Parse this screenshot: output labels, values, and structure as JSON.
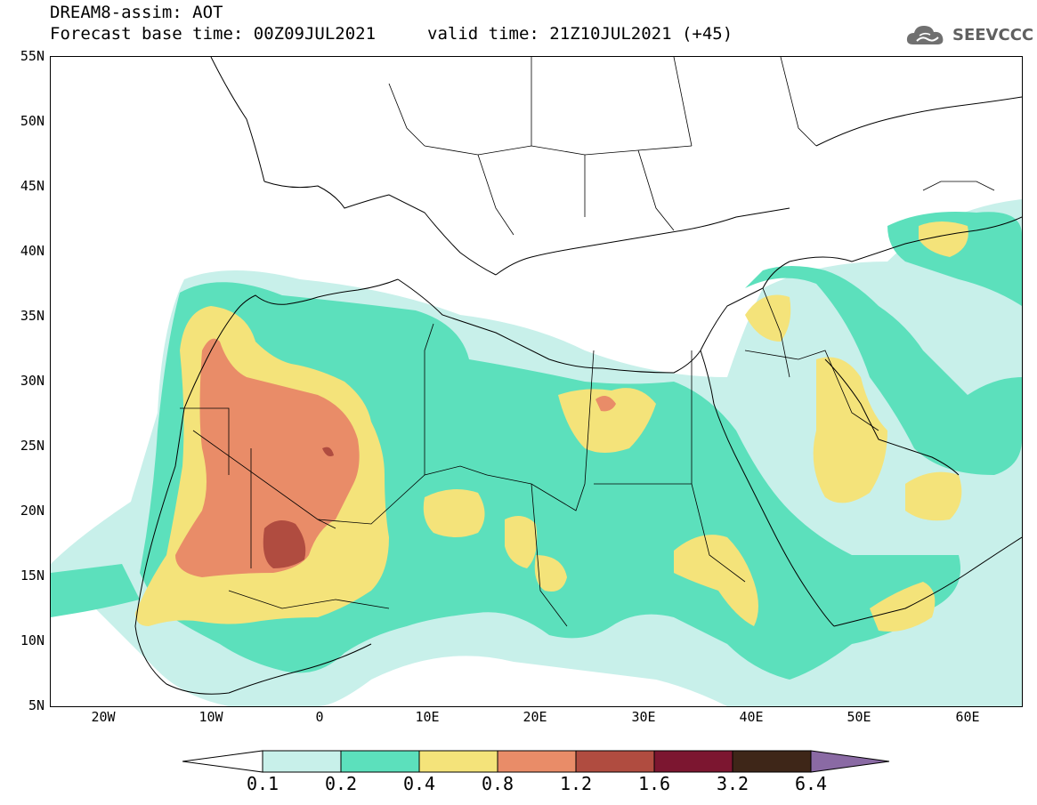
{
  "header": {
    "title": "DREAM8-assim: AOT",
    "base_time": "Forecast base time: 00Z09JUL2021",
    "valid_time": "valid time: 21Z10JUL2021 (+45)",
    "logo_text": "SEEVCCC"
  },
  "map": {
    "region": "North Africa, Middle East and Europe",
    "lat_labels": [
      "55N",
      "50N",
      "45N",
      "40N",
      "35N",
      "30N",
      "25N",
      "20N",
      "15N",
      "10N",
      "5N"
    ],
    "lon_labels": [
      "20W",
      "10W",
      "0",
      "10E",
      "20E",
      "30E",
      "40E",
      "50E",
      "60E"
    ],
    "lat_range": [
      5,
      55
    ],
    "lon_range": [
      -25,
      65
    ]
  },
  "legend": {
    "values": [
      "0.1",
      "0.2",
      "0.4",
      "0.8",
      "1.2",
      "1.6",
      "3.2",
      "6.4"
    ],
    "colors": [
      "#c8f0ea",
      "#5ce0bc",
      "#f4e37a",
      "#e98c68",
      "#b04c40",
      "#7c1630",
      "#3e2618",
      "#8a6aa4"
    ]
  }
}
